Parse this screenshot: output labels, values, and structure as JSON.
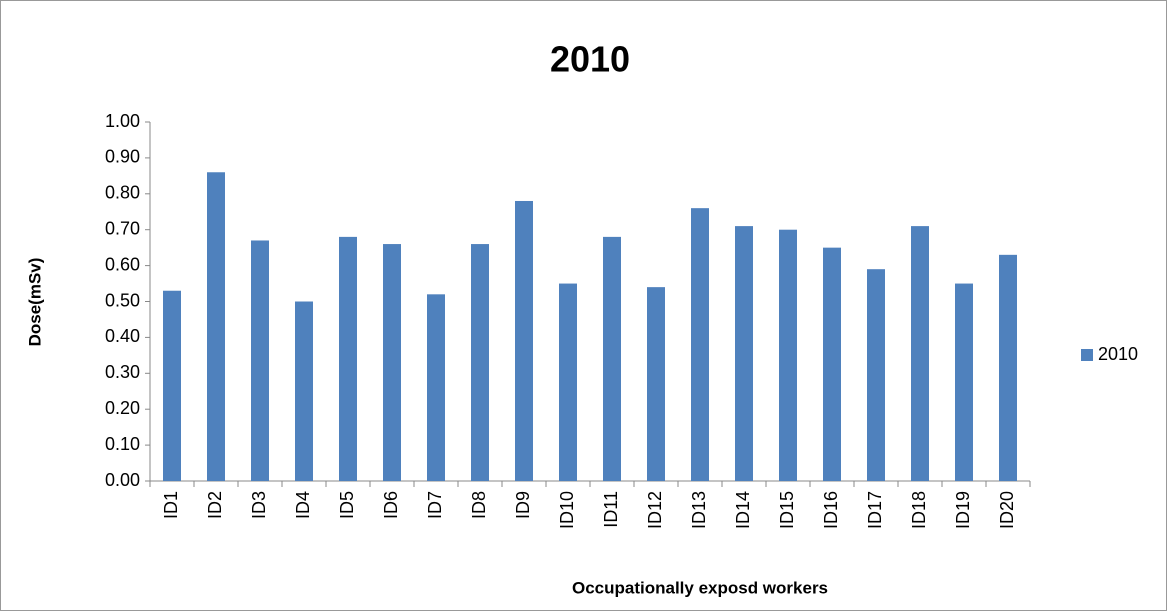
{
  "chart_data": {
    "type": "bar",
    "title": "2010",
    "xlabel": "Occupationally exposd workers",
    "ylabel": "Dose(mSv)",
    "categories": [
      "ID1",
      "ID2",
      "ID3",
      "ID4",
      "ID5",
      "ID6",
      "ID7",
      "ID8",
      "ID9",
      "ID10",
      "ID11",
      "ID12",
      "ID13",
      "ID14",
      "ID15",
      "ID16",
      "ID17",
      "ID18",
      "ID19",
      "ID20"
    ],
    "series": [
      {
        "name": "2010",
        "color": "#4f81bd",
        "values": [
          0.53,
          0.86,
          0.67,
          0.5,
          0.68,
          0.66,
          0.52,
          0.66,
          0.78,
          0.55,
          0.68,
          0.54,
          0.76,
          0.71,
          0.7,
          0.65,
          0.59,
          0.71,
          0.55,
          0.63
        ]
      }
    ],
    "ylim": [
      0,
      1
    ],
    "yticks": [
      {
        "value": 0,
        "label": "0.00"
      },
      {
        "value": 0.1,
        "label": "0.10"
      },
      {
        "value": 0.2,
        "label": "0.20"
      },
      {
        "value": 0.3,
        "label": "0.30"
      },
      {
        "value": 0.4,
        "label": "0.40"
      },
      {
        "value": 0.5,
        "label": "0.50"
      },
      {
        "value": 0.6,
        "label": "0.60"
      },
      {
        "value": 0.7,
        "label": "0.70"
      },
      {
        "value": 0.8,
        "label": "0.80"
      },
      {
        "value": 0.9,
        "label": "0.90"
      },
      {
        "value": 1,
        "label": "1.00"
      }
    ],
    "grid": false,
    "legend": "right"
  }
}
